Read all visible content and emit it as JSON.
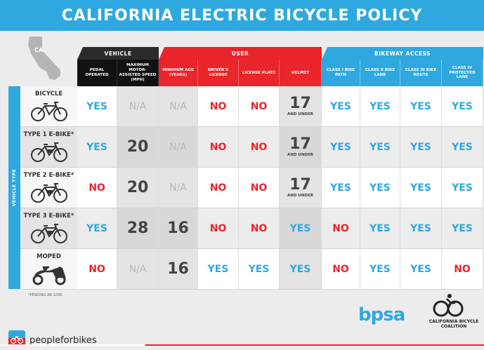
{
  "title": "CALIFORNIA ELECTRIC BICYCLE POLICY",
  "map_label": "CA",
  "groups": {
    "vehicle": "VEHICLE",
    "user": "USER",
    "bikeway": "BIKEWAY ACCESS"
  },
  "columns": {
    "pedal": "PEDAL OPERATED",
    "speed": "MAXIMUM MOTOR-ASSISTED SPEED (MPH)",
    "age": "MINIMUM AGE (YEARS)",
    "license": "DRIVER'S LICENSE",
    "plate": "LICENSE PLATE",
    "helmet": "HELMET",
    "class1": "CLASS I BIKE PATH",
    "class2": "CLASS II BIKE LANE",
    "class3": "CLASS III BIKE ROUTE",
    "class4": "CLASS IV PROTECTED LANE"
  },
  "side_label": "VEHICLE TYPE",
  "rows": [
    {
      "name": "BICYCLE",
      "icon": "bicycle-icon",
      "cells": [
        {
          "v": "YES",
          "t": "yes"
        },
        {
          "v": "N/A",
          "t": "na"
        },
        {
          "v": "N/A",
          "t": "na"
        },
        {
          "v": "NO",
          "t": "no"
        },
        {
          "v": "NO",
          "t": "no"
        },
        {
          "v": "17",
          "sub": "AND UNDER",
          "t": "num"
        },
        {
          "v": "YES",
          "t": "yes"
        },
        {
          "v": "YES",
          "t": "yes"
        },
        {
          "v": "YES",
          "t": "yes"
        },
        {
          "v": "YES",
          "t": "yes"
        }
      ]
    },
    {
      "name": "TYPE 1 E-BIKE*",
      "icon": "ebike-icon",
      "cells": [
        {
          "v": "YES",
          "t": "yes"
        },
        {
          "v": "20",
          "t": "num"
        },
        {
          "v": "N/A",
          "t": "na"
        },
        {
          "v": "NO",
          "t": "no"
        },
        {
          "v": "NO",
          "t": "no"
        },
        {
          "v": "17",
          "sub": "AND UNDER",
          "t": "num"
        },
        {
          "v": "YES",
          "t": "yes"
        },
        {
          "v": "YES",
          "t": "yes"
        },
        {
          "v": "YES",
          "t": "yes"
        },
        {
          "v": "YES",
          "t": "yes"
        }
      ]
    },
    {
      "name": "TYPE 2 E-BIKE*",
      "icon": "ebike-icon",
      "cells": [
        {
          "v": "NO",
          "t": "no"
        },
        {
          "v": "20",
          "t": "num"
        },
        {
          "v": "N/A",
          "t": "na"
        },
        {
          "v": "NO",
          "t": "no"
        },
        {
          "v": "NO",
          "t": "no"
        },
        {
          "v": "17",
          "sub": "AND UNDER",
          "t": "num"
        },
        {
          "v": "YES",
          "t": "yes"
        },
        {
          "v": "YES",
          "t": "yes"
        },
        {
          "v": "YES",
          "t": "yes"
        },
        {
          "v": "YES",
          "t": "yes"
        }
      ]
    },
    {
      "name": "TYPE 3 E-BIKE*",
      "icon": "ebike-icon",
      "cells": [
        {
          "v": "YES",
          "t": "yes"
        },
        {
          "v": "28",
          "t": "num"
        },
        {
          "v": "16",
          "t": "num"
        },
        {
          "v": "NO",
          "t": "no"
        },
        {
          "v": "NO",
          "t": "no"
        },
        {
          "v": "YES",
          "t": "yes"
        },
        {
          "v": "NO",
          "t": "no"
        },
        {
          "v": "YES",
          "t": "yes"
        },
        {
          "v": "YES",
          "t": "yes"
        },
        {
          "v": "YES",
          "t": "yes"
        }
      ]
    },
    {
      "name": "MOPED",
      "icon": "moped-icon",
      "cells": [
        {
          "v": "NO",
          "t": "no"
        },
        {
          "v": "N/A",
          "t": "na"
        },
        {
          "v": "16",
          "t": "num"
        },
        {
          "v": "YES",
          "t": "yes"
        },
        {
          "v": "YES",
          "t": "yes"
        },
        {
          "v": "YES",
          "t": "yes"
        },
        {
          "v": "NO",
          "t": "no"
        },
        {
          "v": "YES",
          "t": "yes"
        },
        {
          "v": "YES",
          "t": "yes"
        },
        {
          "v": "NO",
          "t": "no"
        }
      ]
    }
  ],
  "footnote": "*PENDING AB-1096",
  "footer": {
    "pfb": "peopleforbikes",
    "bpsa": "bpsa",
    "cbc": "CALIFORNIA BICYCLE COALITION"
  },
  "colors": {
    "blue": "#2fa8df",
    "red": "#e8262b",
    "dark": "#111111"
  }
}
